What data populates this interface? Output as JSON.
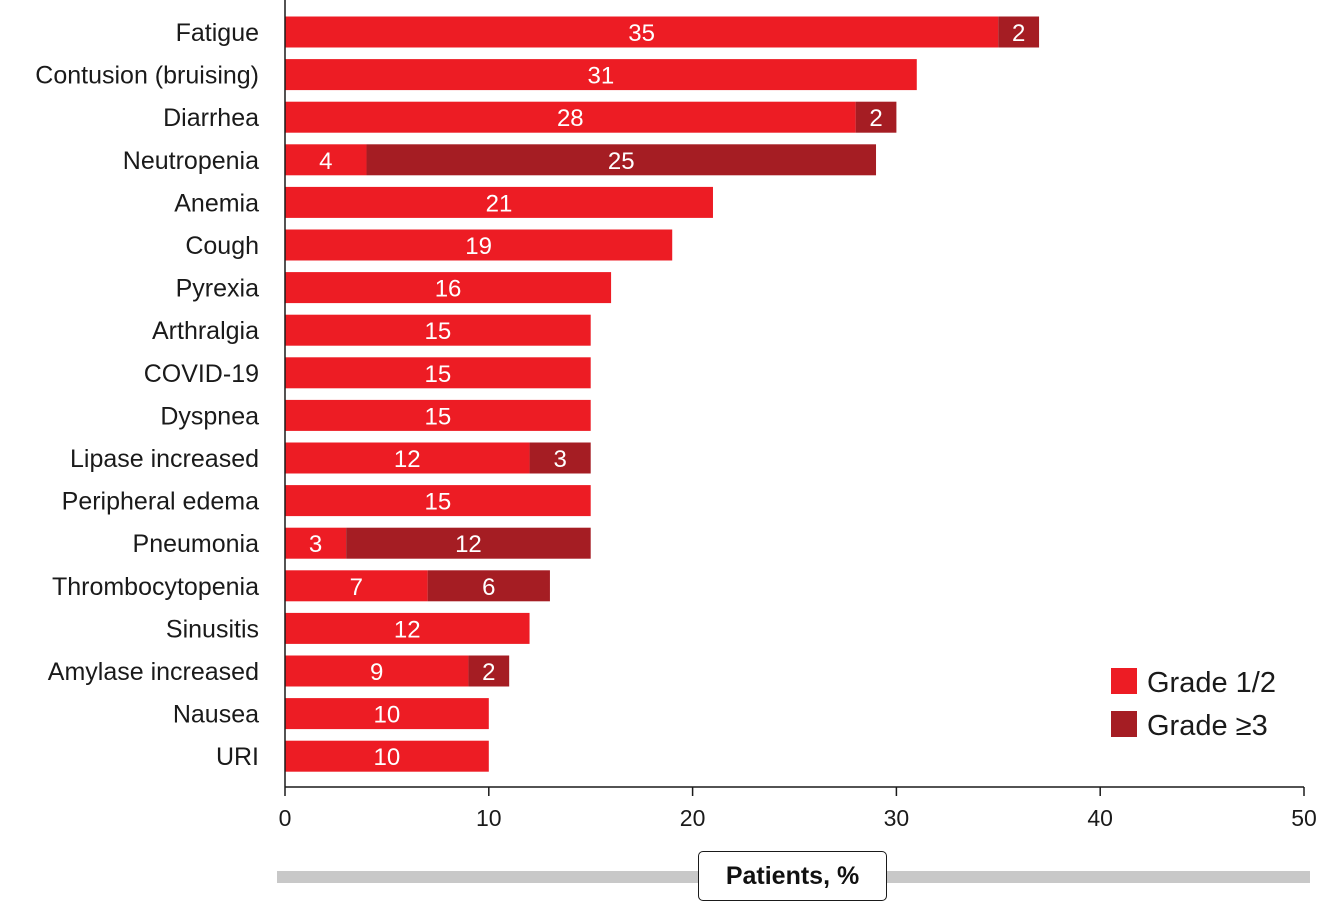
{
  "colors": {
    "grade12": "#ed1c24",
    "grade3": "#a51d23",
    "axis": "#1a1a1a",
    "track": "#c8c8c8"
  },
  "chart_data": {
    "type": "bar",
    "orientation": "horizontal",
    "stacked": true,
    "categories": [
      "Fatigue",
      "Contusion (bruising)",
      "Diarrhea",
      "Neutropenia",
      "Anemia",
      "Cough",
      "Pyrexia",
      "Arthralgia",
      "COVID-19",
      "Dyspnea",
      "Lipase increased",
      "Peripheral edema",
      "Pneumonia",
      "Thrombocytopenia",
      "Sinusitis",
      "Amylase increased",
      "Nausea",
      "URI"
    ],
    "series": [
      {
        "name": "Grade 1/2",
        "values": [
          35,
          31,
          28,
          4,
          21,
          19,
          16,
          15,
          15,
          15,
          12,
          15,
          3,
          7,
          12,
          9,
          10,
          10
        ]
      },
      {
        "name": "Grade ≥3",
        "values": [
          2,
          0,
          2,
          25,
          0,
          0,
          0,
          0,
          0,
          0,
          3,
          0,
          12,
          6,
          0,
          2,
          0,
          0
        ]
      }
    ],
    "data_labels": [
      [
        "35",
        "31",
        "28",
        "4",
        "21",
        "19",
        "16",
        "15",
        "15",
        "15",
        "12",
        "15",
        "3",
        "7",
        "12",
        "9",
        "10",
        "10"
      ],
      [
        "2",
        "",
        "2",
        "25",
        "",
        "",
        "",
        "",
        "",
        "",
        "3",
        "",
        "12",
        "6",
        "",
        "2",
        "",
        ""
      ]
    ],
    "xlabel": "Patients, %",
    "xlim": [
      0,
      50
    ],
    "xticks": [
      "0",
      "10",
      "20",
      "30",
      "40",
      "50"
    ],
    "legend": {
      "position": "bottom-right",
      "entries": [
        "Grade 1/2",
        "Grade ≥3"
      ]
    },
    "grid": false
  }
}
